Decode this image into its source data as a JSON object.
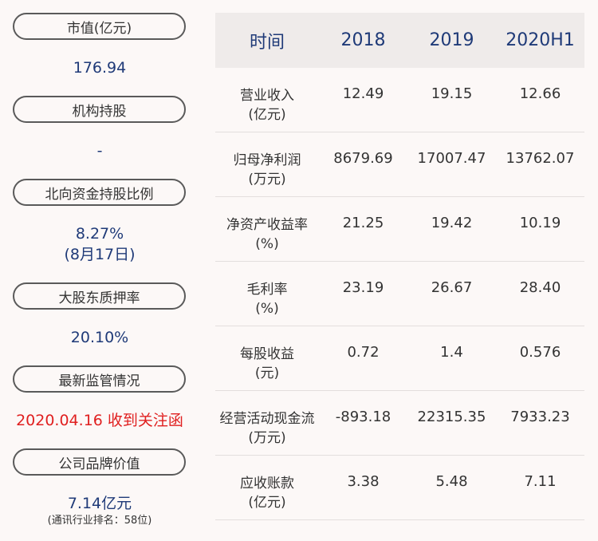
{
  "left_panel": [
    {
      "label": "市值(亿元)",
      "value": "176.94"
    },
    {
      "label": "机构持股",
      "value": "-"
    },
    {
      "label": "北向资金持股比例",
      "value": "8.27%",
      "value2": "(8月17日)"
    },
    {
      "label": "大股东质押率",
      "value": "20.10%"
    },
    {
      "label": "最新监管情况",
      "value": "2020.04.16 收到关注函"
    },
    {
      "label": "公司品牌价值",
      "value": "7.14亿元",
      "note": "(通讯行业排名：58位)"
    }
  ],
  "table": {
    "headers": [
      "时间",
      "2018",
      "2019",
      "2020H1"
    ],
    "rows": [
      {
        "label": "营业收入",
        "unit": "(亿元)",
        "values": [
          "12.49",
          "19.15",
          "12.66"
        ]
      },
      {
        "label": "归母净利润",
        "unit": "(万元)",
        "values": [
          "8679.69",
          "17007.47",
          "13762.07"
        ]
      },
      {
        "label": "净资产收益率",
        "unit": "(%)",
        "values": [
          "21.25",
          "19.42",
          "10.19"
        ]
      },
      {
        "label": "毛利率",
        "unit": "(%)",
        "values": [
          "23.19",
          "26.67",
          "28.40"
        ]
      },
      {
        "label": "每股收益",
        "unit": "(元)",
        "values": [
          "0.72",
          "1.4",
          "0.576"
        ]
      },
      {
        "label": "经营活动现金流",
        "unit": "(万元)",
        "values": [
          "-893.18",
          "22315.35",
          "7933.23"
        ]
      },
      {
        "label": "应收账款",
        "unit": "(亿元)",
        "values": [
          "3.38",
          "5.48",
          "7.11"
        ]
      }
    ]
  },
  "colors": {
    "accent": "#1f3a78",
    "alert": "#e02020",
    "header_bg": "#efebea",
    "page_bg": "#fcf8f7"
  }
}
